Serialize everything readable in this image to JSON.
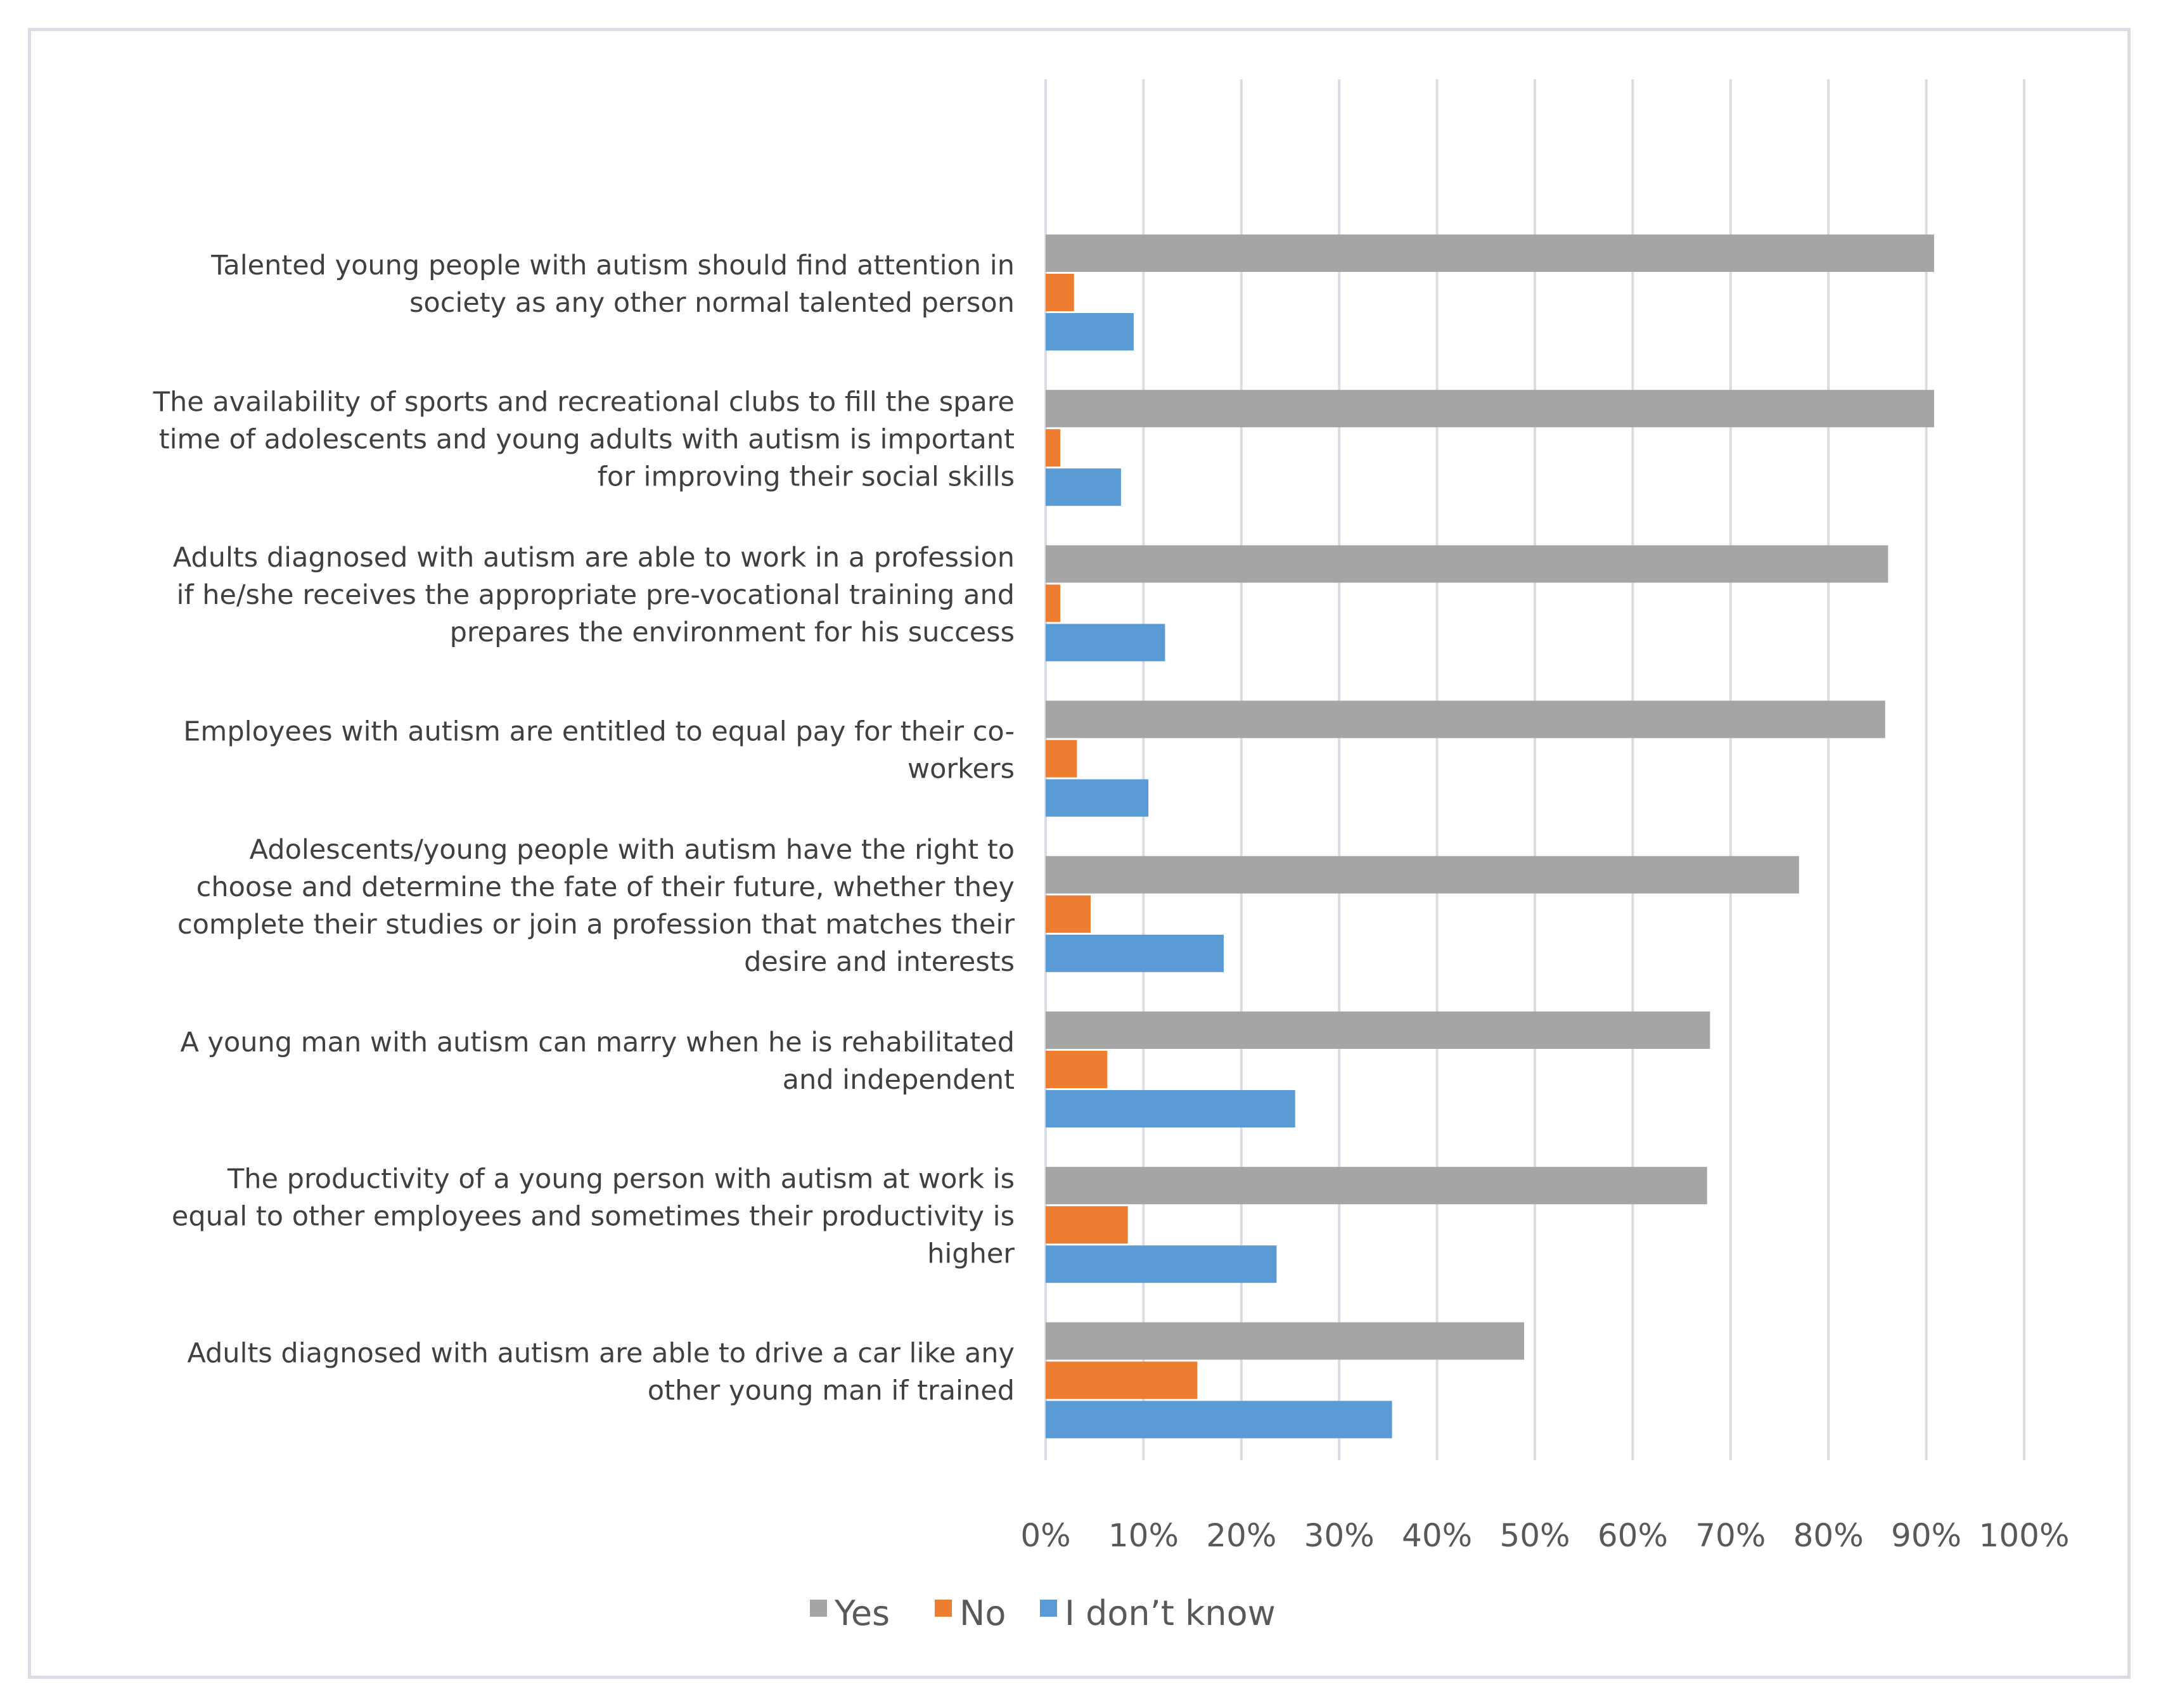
{
  "chart_data": {
    "type": "bar",
    "orientation": "horizontal",
    "title": "",
    "xlabel": "",
    "ylabel": "",
    "xlim": [
      0,
      100
    ],
    "grid": true,
    "legend_position": "bottom",
    "tick_labels": [
      "0%",
      "10%",
      "20%",
      "30%",
      "40%",
      "50%",
      "60%",
      "70%",
      "80%",
      "90%",
      "100%"
    ],
    "categories": [
      {
        "lines": [
          "Talented young people with autism should find attention in",
          "society as any other normal talented person"
        ]
      },
      {
        "lines": [
          "The availability of sports and recreational clubs to fill the spare",
          "time of adolescents and young adults with autism is important",
          "for improving their social skills"
        ]
      },
      {
        "lines": [
          "Adults diagnosed with autism are able to work in a profession",
          "if he/she receives the appropriate pre-vocational training and",
          "prepares the environment for his success"
        ]
      },
      {
        "lines": [
          "Employees with autism are entitled to equal pay for their co-",
          "workers"
        ]
      },
      {
        "lines": [
          "Adolescents/young people with autism have the right to",
          "choose and determine the fate of their future, whether they",
          "complete their studies or join a profession that matches their",
          "desire and interests"
        ]
      },
      {
        "lines": [
          "A young man with autism can marry when he is rehabilitated",
          "and independent"
        ]
      },
      {
        "lines": [
          "The productivity of a young person with autism at work is",
          "equal to other employees and sometimes their productivity is",
          "higher"
        ]
      },
      {
        "lines": [
          "Adults diagnosed with autism are able to drive a car like any",
          "other young man if trained"
        ]
      }
    ],
    "series": [
      {
        "name": "Yes",
        "color": "#a5a5a5",
        "values": [
          90.8,
          90.8,
          86.1,
          85.8,
          77.0,
          67.9,
          67.6,
          48.9
        ]
      },
      {
        "name": "No",
        "color": "#ed7d31",
        "values": [
          2.9,
          1.5,
          1.5,
          3.2,
          4.6,
          6.3,
          8.4,
          15.5
        ]
      },
      {
        "name": "I don’t know",
        "color": "#5b9bd5",
        "values": [
          9.0,
          7.7,
          12.2,
          10.5,
          18.2,
          25.5,
          23.6,
          35.4
        ]
      }
    ]
  }
}
